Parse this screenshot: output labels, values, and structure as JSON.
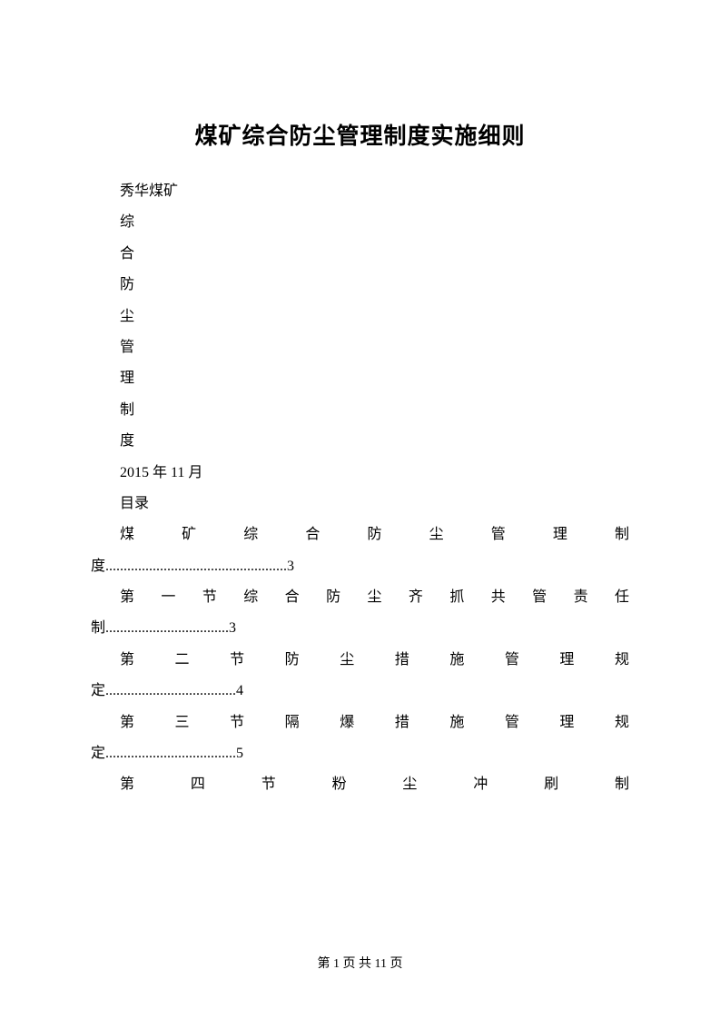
{
  "title": "煤矿综合防尘管理制度实施细则",
  "org": "秀华煤矿",
  "vertical_chars": [
    "综",
    "合",
    "防",
    "尘",
    "管",
    "理",
    "制",
    "度"
  ],
  "date": "2015 年 11 月",
  "toc_heading": "目录",
  "toc": {
    "line1a": "煤矿综合防尘管理制",
    "line1b": "度..................................................3",
    "line2a": "第一节综合防尘齐抓共管责任",
    "line2b": "制..................................3",
    "line3a": "第二节防尘措施管理规",
    "line3b": "定....................................4",
    "line4a": "第三节隔爆措施管理规",
    "line4b": "定....................................5",
    "line5a": "第四节粉尘冲刷制"
  },
  "footer": "第 1 页 共 11 页"
}
